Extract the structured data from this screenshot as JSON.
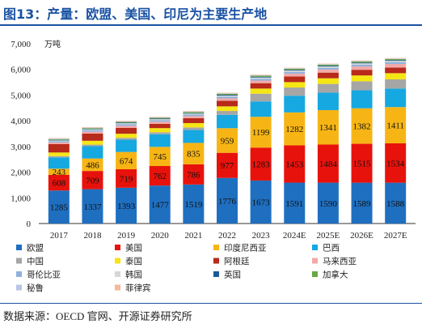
{
  "page": {
    "title": "图13：产量：欧盟、美国、印尼为主要生产地",
    "source": "数据来源：OECD 官网、开源证券研究所"
  },
  "chart_data": {
    "type": "bar",
    "stacked": true,
    "title": "图13：产量：欧盟、美国、印尼为主要生产地",
    "unit": "万吨",
    "xlabel": "",
    "ylabel": "",
    "ylim": [
      0,
      7000
    ],
    "yticks": [
      0,
      1000,
      2000,
      3000,
      4000,
      5000,
      6000,
      7000
    ],
    "ytick_labels": [
      "0",
      "1,000",
      "2,000",
      "3,000",
      "4,000",
      "5,000",
      "6,000",
      "7,000"
    ],
    "grid": false,
    "legend_position": "bottom",
    "categories": [
      "2017",
      "2018",
      "2019",
      "2020",
      "2021",
      "2022",
      "2023",
      "2024E",
      "2025E",
      "2026E",
      "2027E"
    ],
    "series": [
      {
        "name": "欧盟",
        "color": "#1f6fc0",
        "labeled": true,
        "values": [
          1285,
          1337,
          1393,
          1477,
          1519,
          1776,
          1673,
          1591,
          1590,
          1589,
          1588
        ]
      },
      {
        "name": "美国",
        "color": "#e8120c",
        "labeled": true,
        "values": [
          608,
          709,
          719,
          762,
          786,
          977,
          1283,
          1453,
          1484,
          1515,
          1534
        ]
      },
      {
        "name": "印度尼西亚",
        "color": "#f7b515",
        "labeled": true,
        "values": [
          243,
          486,
          674,
          745,
          835,
          959,
          1199,
          1282,
          1341,
          1382,
          1411
        ]
      },
      {
        "name": "巴西",
        "color": "#16a8e0",
        "labeled": false,
        "values": [
          440,
          480,
          480,
          490,
          500,
          520,
          600,
          650,
          680,
          700,
          720
        ]
      },
      {
        "name": "中国",
        "color": "#a6a6a6",
        "labeled": false,
        "values": [
          50,
          60,
          70,
          80,
          100,
          150,
          300,
          320,
          340,
          350,
          360
        ]
      },
      {
        "name": "泰国",
        "color": "#f5e614",
        "labeled": false,
        "values": [
          140,
          150,
          160,
          160,
          170,
          180,
          200,
          210,
          220,
          230,
          240
        ]
      },
      {
        "name": "阿根廷",
        "color": "#b82a1a",
        "labeled": false,
        "values": [
          330,
          280,
          230,
          170,
          190,
          220,
          210,
          220,
          220,
          220,
          220
        ]
      },
      {
        "name": "马来西亚",
        "color": "#f2aaa8",
        "labeled": false,
        "values": [
          60,
          70,
          80,
          80,
          80,
          90,
          100,
          110,
          120,
          130,
          140
        ]
      },
      {
        "name": "哥伦比亚",
        "color": "#8fb2dd",
        "labeled": false,
        "values": [
          50,
          60,
          60,
          60,
          60,
          70,
          70,
          70,
          70,
          70,
          70
        ]
      },
      {
        "name": "韩国",
        "color": "#d6d6d6",
        "labeled": false,
        "values": [
          30,
          30,
          40,
          40,
          40,
          40,
          50,
          50,
          50,
          50,
          50
        ]
      },
      {
        "name": "英国",
        "color": "#1a5a96",
        "labeled": false,
        "values": [
          20,
          20,
          20,
          20,
          20,
          30,
          30,
          30,
          30,
          30,
          30
        ]
      },
      {
        "name": "加拿大",
        "color": "#6aa842",
        "labeled": false,
        "values": [
          30,
          30,
          30,
          30,
          40,
          40,
          40,
          40,
          40,
          40,
          40
        ]
      },
      {
        "name": "秘鲁",
        "color": "#b8c6e6",
        "labeled": false,
        "values": [
          20,
          20,
          20,
          20,
          20,
          20,
          20,
          20,
          20,
          20,
          20
        ]
      },
      {
        "name": "菲律宾",
        "color": "#f4b89a",
        "labeled": false,
        "values": [
          20,
          20,
          20,
          20,
          20,
          20,
          20,
          20,
          20,
          20,
          20
        ]
      }
    ]
  }
}
